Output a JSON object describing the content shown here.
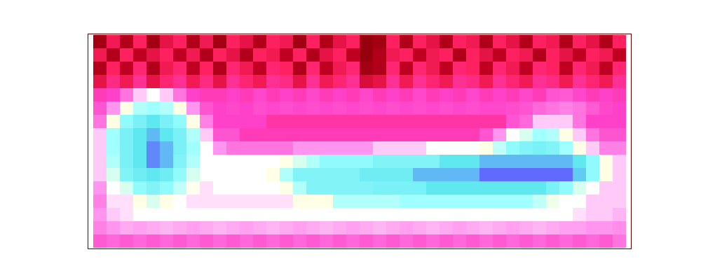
{
  "chart_data": {
    "type": "heatmap",
    "tick_labels": false,
    "zlim": [
      0,
      1
    ],
    "cells": [
      [
        0.06,
        0.18,
        0.08,
        0.2,
        0.06,
        0.16,
        0.2,
        0.08,
        0.18,
        0.06,
        0.2,
        0.16,
        0.08,
        0.2,
        0.18,
        0.06,
        0.2,
        0.08,
        0.16,
        0.2,
        0.04,
        0.06,
        0.2,
        0.08,
        0.2,
        0.16,
        0.08,
        0.2,
        0.18,
        0.08,
        0.2,
        0.16,
        0.08,
        0.2,
        0.18,
        0.08,
        0.2,
        0.16,
        0.08,
        0.2
      ],
      [
        0.18,
        0.08,
        0.2,
        0.1,
        0.16,
        0.2,
        0.1,
        0.18,
        0.08,
        0.2,
        0.16,
        0.08,
        0.2,
        0.18,
        0.1,
        0.2,
        0.08,
        0.16,
        0.2,
        0.1,
        0.04,
        0.08,
        0.18,
        0.2,
        0.1,
        0.18,
        0.2,
        0.08,
        0.2,
        0.16,
        0.1,
        0.2,
        0.18,
        0.08,
        0.2,
        0.16,
        0.1,
        0.2,
        0.18,
        0.1
      ],
      [
        0.08,
        0.2,
        0.1,
        0.22,
        0.08,
        0.18,
        0.22,
        0.1,
        0.2,
        0.08,
        0.22,
        0.18,
        0.1,
        0.22,
        0.2,
        0.08,
        0.22,
        0.1,
        0.18,
        0.22,
        0.06,
        0.08,
        0.22,
        0.1,
        0.22,
        0.18,
        0.1,
        0.22,
        0.2,
        0.1,
        0.22,
        0.18,
        0.1,
        0.22,
        0.2,
        0.1,
        0.22,
        0.18,
        0.1,
        0.22
      ],
      [
        0.16,
        0.24,
        0.18,
        0.26,
        0.16,
        0.22,
        0.26,
        0.18,
        0.24,
        0.16,
        0.26,
        0.22,
        0.18,
        0.26,
        0.24,
        0.16,
        0.26,
        0.18,
        0.22,
        0.26,
        0.14,
        0.16,
        0.26,
        0.18,
        0.26,
        0.22,
        0.18,
        0.26,
        0.24,
        0.18,
        0.26,
        0.22,
        0.18,
        0.26,
        0.24,
        0.18,
        0.26,
        0.22,
        0.18,
        0.26
      ],
      [
        0.3,
        0.32,
        0.4,
        0.5,
        0.55,
        0.5,
        0.4,
        0.32,
        0.3,
        0.3,
        0.32,
        0.3,
        0.33,
        0.3,
        0.32,
        0.3,
        0.33,
        0.3,
        0.32,
        0.3,
        0.33,
        0.3,
        0.32,
        0.3,
        0.33,
        0.3,
        0.32,
        0.3,
        0.33,
        0.3,
        0.32,
        0.3,
        0.33,
        0.3,
        0.35,
        0.36,
        0.33,
        0.3,
        0.32,
        0.3
      ],
      [
        0.35,
        0.45,
        0.6,
        0.7,
        0.72,
        0.7,
        0.6,
        0.45,
        0.35,
        0.32,
        0.33,
        0.32,
        0.34,
        0.33,
        0.34,
        0.33,
        0.34,
        0.33,
        0.34,
        0.33,
        0.34,
        0.33,
        0.34,
        0.33,
        0.34,
        0.33,
        0.34,
        0.33,
        0.34,
        0.33,
        0.33,
        0.34,
        0.35,
        0.38,
        0.4,
        0.42,
        0.4,
        0.36,
        0.33,
        0.32
      ],
      [
        0.4,
        0.6,
        0.75,
        0.8,
        0.85,
        0.8,
        0.75,
        0.6,
        0.42,
        0.32,
        0.32,
        0.32,
        0.32,
        0.28,
        0.28,
        0.28,
        0.28,
        0.28,
        0.28,
        0.28,
        0.28,
        0.28,
        0.28,
        0.28,
        0.28,
        0.28,
        0.28,
        0.28,
        0.28,
        0.28,
        0.28,
        0.35,
        0.38,
        0.5,
        0.5,
        0.5,
        0.4,
        0.32,
        0.32,
        0.32
      ],
      [
        0.5,
        0.72,
        0.8,
        0.85,
        0.9,
        0.85,
        0.8,
        0.7,
        0.5,
        0.35,
        0.35,
        0.3,
        0.3,
        0.3,
        0.3,
        0.3,
        0.3,
        0.3,
        0.3,
        0.3,
        0.3,
        0.3,
        0.3,
        0.3,
        0.3,
        0.3,
        0.3,
        0.3,
        0.3,
        0.35,
        0.45,
        0.55,
        0.65,
        0.72,
        0.7,
        0.6,
        0.5,
        0.4,
        0.35,
        0.35
      ],
      [
        0.5,
        0.72,
        0.8,
        0.85,
        0.95,
        0.9,
        0.8,
        0.72,
        0.55,
        0.45,
        0.4,
        0.4,
        0.4,
        0.4,
        0.4,
        0.45,
        0.45,
        0.45,
        0.45,
        0.45,
        0.45,
        0.5,
        0.5,
        0.5,
        0.5,
        0.55,
        0.55,
        0.55,
        0.55,
        0.6,
        0.68,
        0.75,
        0.78,
        0.8,
        0.78,
        0.72,
        0.6,
        0.5,
        0.42,
        0.42
      ],
      [
        0.5,
        0.7,
        0.8,
        0.85,
        0.95,
        0.9,
        0.78,
        0.7,
        0.55,
        0.55,
        0.55,
        0.55,
        0.55,
        0.55,
        0.6,
        0.65,
        0.7,
        0.75,
        0.75,
        0.75,
        0.75,
        0.78,
        0.78,
        0.78,
        0.78,
        0.78,
        0.85,
        0.85,
        0.85,
        0.9,
        0.9,
        0.9,
        0.9,
        0.9,
        0.9,
        0.9,
        0.85,
        0.75,
        0.6,
        0.5
      ],
      [
        0.5,
        0.65,
        0.78,
        0.82,
        0.85,
        0.82,
        0.75,
        0.65,
        0.55,
        0.55,
        0.55,
        0.55,
        0.55,
        0.6,
        0.7,
        0.78,
        0.78,
        0.78,
        0.78,
        0.78,
        0.82,
        0.82,
        0.82,
        0.82,
        0.9,
        0.9,
        0.9,
        0.9,
        0.9,
        0.98,
        0.98,
        0.98,
        0.98,
        0.98,
        0.98,
        0.98,
        0.88,
        0.75,
        0.6,
        0.5
      ],
      [
        0.45,
        0.55,
        0.65,
        0.75,
        0.78,
        0.75,
        0.68,
        0.58,
        0.52,
        0.55,
        0.55,
        0.55,
        0.55,
        0.55,
        0.6,
        0.7,
        0.78,
        0.78,
        0.78,
        0.78,
        0.78,
        0.8,
        0.8,
        0.8,
        0.8,
        0.85,
        0.85,
        0.85,
        0.85,
        0.85,
        0.85,
        0.85,
        0.85,
        0.85,
        0.8,
        0.75,
        0.65,
        0.55,
        0.5,
        0.5
      ],
      [
        0.42,
        0.52,
        0.52,
        0.6,
        0.65,
        0.6,
        0.55,
        0.52,
        0.52,
        0.52,
        0.52,
        0.52,
        0.52,
        0.52,
        0.52,
        0.6,
        0.6,
        0.6,
        0.7,
        0.7,
        0.7,
        0.7,
        0.7,
        0.72,
        0.72,
        0.72,
        0.72,
        0.72,
        0.72,
        0.72,
        0.72,
        0.72,
        0.72,
        0.68,
        0.62,
        0.55,
        0.55,
        0.5,
        0.5,
        0.5
      ],
      [
        0.45,
        0.5,
        0.52,
        0.55,
        0.55,
        0.55,
        0.55,
        0.55,
        0.55,
        0.55,
        0.55,
        0.55,
        0.55,
        0.55,
        0.55,
        0.55,
        0.55,
        0.55,
        0.55,
        0.55,
        0.55,
        0.55,
        0.55,
        0.55,
        0.55,
        0.55,
        0.55,
        0.55,
        0.55,
        0.55,
        0.55,
        0.55,
        0.55,
        0.55,
        0.55,
        0.55,
        0.52,
        0.5,
        0.5,
        0.48
      ],
      [
        0.42,
        0.45,
        0.47,
        0.46,
        0.47,
        0.48,
        0.47,
        0.46,
        0.47,
        0.48,
        0.47,
        0.46,
        0.47,
        0.48,
        0.47,
        0.46,
        0.47,
        0.48,
        0.47,
        0.46,
        0.47,
        0.48,
        0.47,
        0.46,
        0.47,
        0.48,
        0.47,
        0.46,
        0.47,
        0.48,
        0.47,
        0.46,
        0.47,
        0.48,
        0.47,
        0.46,
        0.46,
        0.45,
        0.45,
        0.44
      ],
      [
        0.36,
        0.38,
        0.36,
        0.38,
        0.36,
        0.38,
        0.36,
        0.38,
        0.36,
        0.38,
        0.36,
        0.38,
        0.36,
        0.38,
        0.36,
        0.38,
        0.36,
        0.38,
        0.36,
        0.38,
        0.36,
        0.38,
        0.36,
        0.38,
        0.36,
        0.38,
        0.36,
        0.38,
        0.36,
        0.38,
        0.36,
        0.38,
        0.36,
        0.38,
        0.36,
        0.38,
        0.36,
        0.38,
        0.36,
        0.4
      ]
    ]
  }
}
